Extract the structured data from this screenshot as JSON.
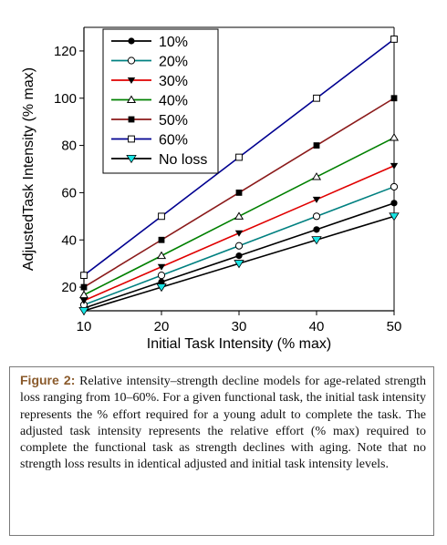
{
  "chart_data": {
    "type": "line",
    "title": "",
    "xlabel": "Initial Task Intensity (% max)",
    "ylabel": "AdjustedTask Intensity (% max)",
    "x": [
      10,
      20,
      30,
      40,
      50
    ],
    "xlim": [
      10,
      50
    ],
    "ylim": [
      10,
      130
    ],
    "xticks": [
      "10",
      "20",
      "30",
      "40",
      "50"
    ],
    "yticks": [
      "20",
      "40",
      "60",
      "80",
      "100",
      "120"
    ],
    "grid": false,
    "legend_position": "top-left",
    "series": [
      {
        "name": "10%",
        "color": "#000000",
        "marker": "filled-circle",
        "values": [
          11.1,
          22.2,
          33.3,
          44.4,
          55.6
        ]
      },
      {
        "name": "20%",
        "color": "#008080",
        "marker": "open-circle",
        "values": [
          12.5,
          25.0,
          37.5,
          50.0,
          62.5
        ]
      },
      {
        "name": "30%",
        "color": "#e00000",
        "marker": "filled-triangle-down",
        "values": [
          14.3,
          28.6,
          42.9,
          57.1,
          71.4
        ]
      },
      {
        "name": "40%",
        "color": "#008000",
        "marker": "open-triangle-up",
        "values": [
          16.7,
          33.3,
          50.0,
          66.7,
          83.3
        ]
      },
      {
        "name": "50%",
        "color": "#8b1a1a",
        "marker": "filled-square",
        "values": [
          20,
          40,
          60,
          80,
          100
        ]
      },
      {
        "name": "60%",
        "color": "#000090",
        "marker": "open-square",
        "values": [
          25,
          50,
          75,
          100,
          125
        ]
      },
      {
        "name": "No loss",
        "color": "#000000",
        "marker": "cyan-triangle-down",
        "values": [
          10,
          20,
          30,
          40,
          50
        ]
      }
    ]
  },
  "caption": {
    "label": "Figure 2:",
    "text": " Relative intensity–strength decline models for age-related strength loss ranging from 10–60%. For a given functional task, the initial task intensity represents the % effort required for a young adult to complete the task. The adjusted task intensity represents the relative effort (% max) required to complete the functional task as strength declines with aging. Note that no strength loss results in identical adjusted and initial task intensity levels."
  }
}
